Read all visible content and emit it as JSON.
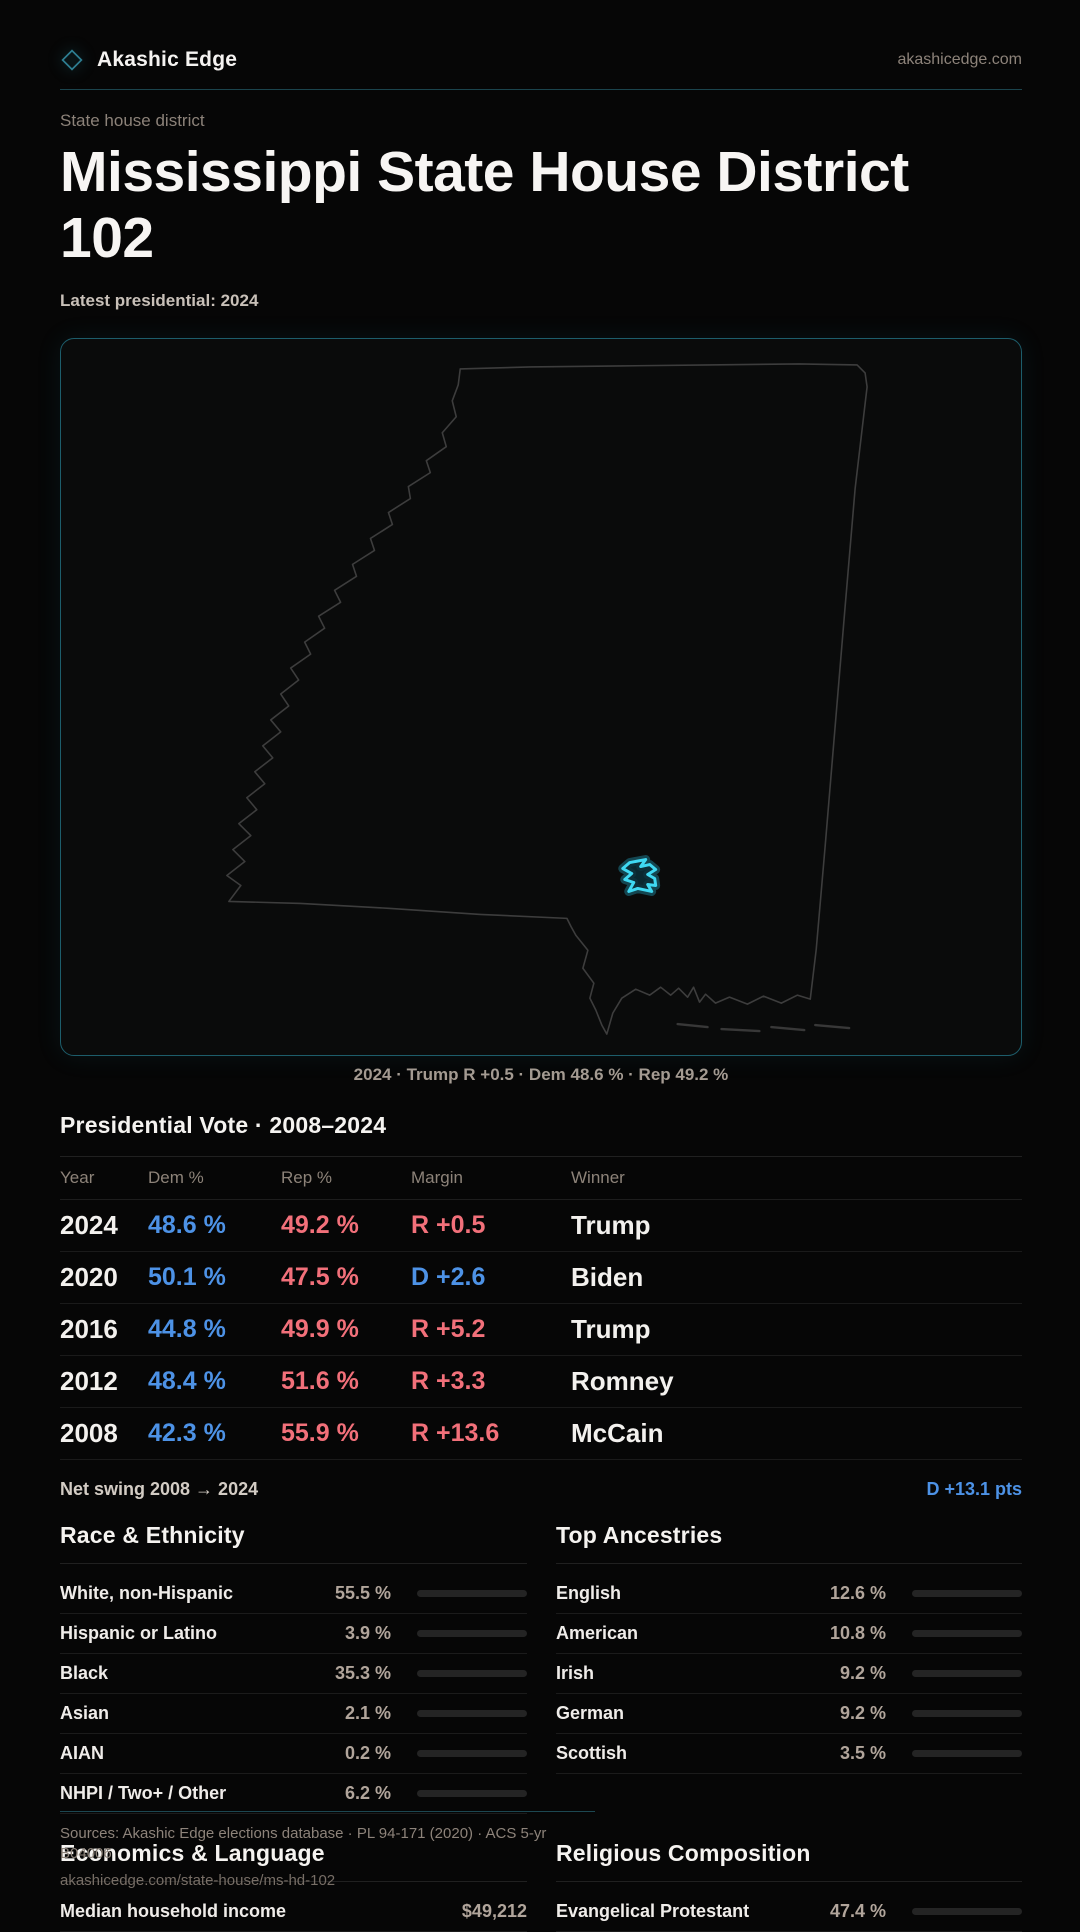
{
  "header": {
    "brand": "Akashic Edge",
    "domain": "akashicedge.com"
  },
  "hero": {
    "eyebrow": "State house district",
    "title": "Mississippi State House District 102",
    "subtitle": "Latest presidential: 2024"
  },
  "map": {
    "caption": "2024 · Trump R +0.5 · Dem 48.6 % · Rep 49.2 %",
    "accent_color": "#3fd8f2",
    "outline_color": "#3d3d3d"
  },
  "presidential": {
    "title": "Presidential Vote · 2008–2024",
    "columns": {
      "year": "Year",
      "dem": "Dem %",
      "rep": "Rep %",
      "margin": "Margin",
      "winner": "Winner"
    },
    "rows": [
      {
        "year": "2024",
        "dem": "48.6 %",
        "rep": "49.2 %",
        "margin": "R +0.5",
        "winner": "Trump"
      },
      {
        "year": "2020",
        "dem": "50.1 %",
        "rep": "47.5 %",
        "margin": "D +2.6",
        "winner": "Biden"
      },
      {
        "year": "2016",
        "dem": "44.8 %",
        "rep": "49.9 %",
        "margin": "R +5.2",
        "winner": "Trump"
      },
      {
        "year": "2012",
        "dem": "48.4 %",
        "rep": "51.6 %",
        "margin": "R +3.3",
        "winner": "Romney"
      },
      {
        "year": "2008",
        "dem": "42.3 %",
        "rep": "55.9 %",
        "margin": "R +13.6",
        "winner": "McCain"
      }
    ],
    "net_swing_label": "Net swing 2008 → 2024",
    "net_swing_value": "D +13.1 pts",
    "dem_color": "#4d92e6",
    "rep_color": "#f2707a"
  },
  "race": {
    "title": "Race & Ethnicity",
    "rows": [
      {
        "label": "White, non-Hispanic",
        "value": "55.5 %",
        "pct": 55.5
      },
      {
        "label": "Hispanic or Latino",
        "value": "3.9 %",
        "pct": 3.9
      },
      {
        "label": "Black",
        "value": "35.3 %",
        "pct": 35.3
      },
      {
        "label": "Asian",
        "value": "2.1 %",
        "pct": 2.1
      },
      {
        "label": "AIAN",
        "value": "0.2 %",
        "pct": 0.2
      },
      {
        "label": "NHPI / Two+ / Other",
        "value": "6.2 %",
        "pct": 6.2
      }
    ]
  },
  "ancestries": {
    "title": "Top Ancestries",
    "rows": [
      {
        "label": "English",
        "value": "12.6 %",
        "pct": 12.6
      },
      {
        "label": "American",
        "value": "10.8 %",
        "pct": 10.8
      },
      {
        "label": "Irish",
        "value": "9.2 %",
        "pct": 9.2
      },
      {
        "label": "German",
        "value": "9.2 %",
        "pct": 9.2
      },
      {
        "label": "Scottish",
        "value": "3.5 %",
        "pct": 3.5
      }
    ]
  },
  "economics": {
    "title": "Economics & Language",
    "rows": [
      {
        "label": "Median household income",
        "value": "$49,212"
      }
    ]
  },
  "religion": {
    "title": "Religious Composition",
    "rows": [
      {
        "label": "Evangelical Protestant",
        "value": "47.4 %",
        "pct": 47.4
      }
    ]
  },
  "footer": {
    "sources": "Sources: Akashic Edge elections database · PL 94-171 (2020) · ACS 5-yr B04006",
    "url": "akashicedge.com/state-house/ms-hd-102"
  }
}
